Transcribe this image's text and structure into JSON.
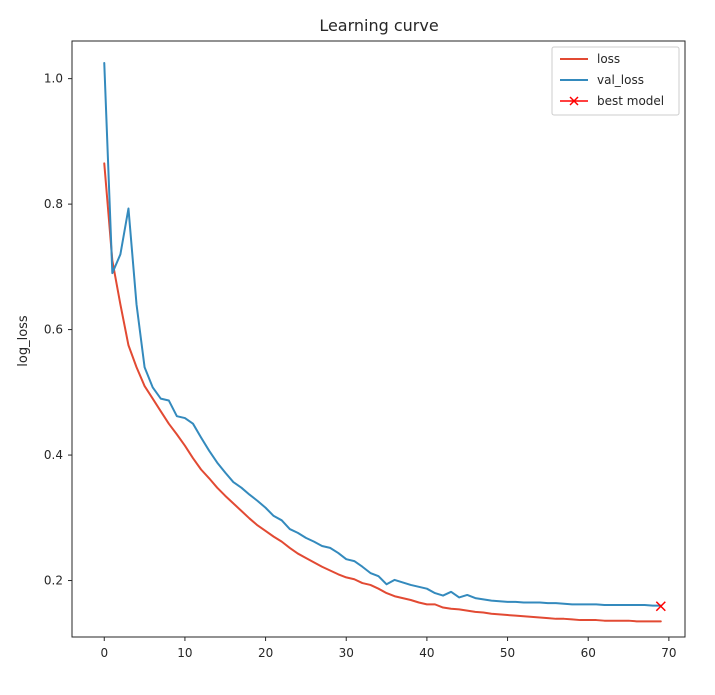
{
  "chart_data": {
    "type": "line",
    "title": "Learning curve",
    "xlabel": "",
    "ylabel": "log_loss",
    "xlim": [
      -4,
      72
    ],
    "ylim": [
      0.11,
      1.06
    ],
    "xticks": [
      0,
      10,
      20,
      30,
      40,
      50,
      60,
      70
    ],
    "yticks": [
      0.2,
      0.4,
      0.6,
      0.8,
      1.0
    ],
    "ytick_labels": [
      "0.2",
      "0.4",
      "0.6",
      "0.8",
      "1.0"
    ],
    "grid": false,
    "legend_position": "top-right",
    "series": [
      {
        "name": "loss",
        "color": "#E24A33",
        "x": [
          0,
          1,
          2,
          3,
          4,
          5,
          6,
          7,
          8,
          9,
          10,
          11,
          12,
          13,
          14,
          15,
          16,
          17,
          18,
          19,
          20,
          21,
          22,
          23,
          24,
          25,
          26,
          27,
          28,
          29,
          30,
          31,
          32,
          33,
          34,
          35,
          36,
          37,
          38,
          39,
          40,
          41,
          42,
          43,
          44,
          45,
          46,
          47,
          48,
          49,
          50,
          51,
          52,
          53,
          54,
          55,
          56,
          57,
          58,
          59,
          60,
          61,
          62,
          63,
          64,
          65,
          66,
          67,
          68,
          69
        ],
        "values": [
          0.865,
          0.71,
          0.64,
          0.575,
          0.54,
          0.51,
          0.49,
          0.47,
          0.45,
          0.433,
          0.415,
          0.395,
          0.377,
          0.363,
          0.348,
          0.335,
          0.323,
          0.311,
          0.299,
          0.288,
          0.279,
          0.27,
          0.262,
          0.252,
          0.243,
          0.236,
          0.229,
          0.222,
          0.216,
          0.21,
          0.205,
          0.202,
          0.196,
          0.193,
          0.187,
          0.18,
          0.175,
          0.172,
          0.169,
          0.165,
          0.162,
          0.162,
          0.157,
          0.155,
          0.154,
          0.152,
          0.15,
          0.149,
          0.147,
          0.146,
          0.145,
          0.144,
          0.143,
          0.142,
          0.141,
          0.14,
          0.139,
          0.139,
          0.138,
          0.137,
          0.137,
          0.137,
          0.136,
          0.136,
          0.136,
          0.136,
          0.135,
          0.135,
          0.135,
          0.135
        ]
      },
      {
        "name": "val_loss",
        "color": "#348ABD",
        "x": [
          0,
          1,
          2,
          3,
          4,
          5,
          6,
          7,
          8,
          9,
          10,
          11,
          12,
          13,
          14,
          15,
          16,
          17,
          18,
          19,
          20,
          21,
          22,
          23,
          24,
          25,
          26,
          27,
          28,
          29,
          30,
          31,
          32,
          33,
          34,
          35,
          36,
          37,
          38,
          39,
          40,
          41,
          42,
          43,
          44,
          45,
          46,
          47,
          48,
          49,
          50,
          51,
          52,
          53,
          54,
          55,
          56,
          57,
          58,
          59,
          60,
          61,
          62,
          63,
          64,
          65,
          66,
          67,
          68,
          69
        ],
        "values": [
          1.025,
          0.69,
          0.72,
          0.793,
          0.64,
          0.54,
          0.508,
          0.49,
          0.487,
          0.462,
          0.459,
          0.45,
          0.428,
          0.407,
          0.388,
          0.372,
          0.357,
          0.348,
          0.337,
          0.327,
          0.316,
          0.303,
          0.296,
          0.282,
          0.276,
          0.268,
          0.262,
          0.255,
          0.252,
          0.244,
          0.234,
          0.231,
          0.222,
          0.212,
          0.207,
          0.194,
          0.201,
          0.197,
          0.193,
          0.19,
          0.187,
          0.18,
          0.176,
          0.182,
          0.173,
          0.177,
          0.172,
          0.17,
          0.168,
          0.167,
          0.166,
          0.166,
          0.165,
          0.165,
          0.165,
          0.164,
          0.164,
          0.163,
          0.162,
          0.162,
          0.162,
          0.162,
          0.161,
          0.161,
          0.161,
          0.161,
          0.161,
          0.161,
          0.16,
          0.16
        ]
      }
    ],
    "markers": [
      {
        "name": "best model",
        "color": "#FF0000",
        "symbol": "x",
        "x": 69,
        "y": 0.159
      }
    ]
  }
}
